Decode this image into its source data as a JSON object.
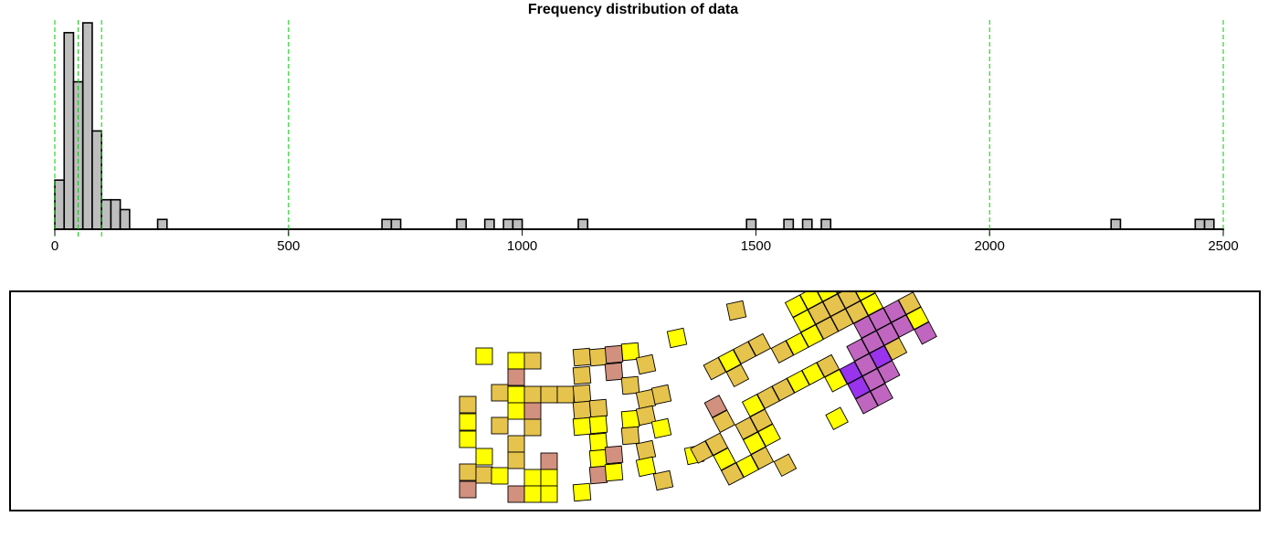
{
  "chart_data": {
    "type": "bar",
    "title": "Frequency distribution of data",
    "xlabel": "",
    "ylabel": "",
    "xlim": [
      0,
      2500
    ],
    "ylim": [
      0,
      21
    ],
    "x_ticks": [
      0,
      500,
      1000,
      1500,
      2000,
      2500
    ],
    "bin_width": 20,
    "bins": [
      {
        "start": 0,
        "count": 5
      },
      {
        "start": 20,
        "count": 20
      },
      {
        "start": 40,
        "count": 15
      },
      {
        "start": 60,
        "count": 21
      },
      {
        "start": 80,
        "count": 10
      },
      {
        "start": 100,
        "count": 3
      },
      {
        "start": 120,
        "count": 3
      },
      {
        "start": 140,
        "count": 2
      },
      {
        "start": 220,
        "count": 1
      },
      {
        "start": 700,
        "count": 1
      },
      {
        "start": 720,
        "count": 1
      },
      {
        "start": 860,
        "count": 1
      },
      {
        "start": 920,
        "count": 1
      },
      {
        "start": 960,
        "count": 1
      },
      {
        "start": 980,
        "count": 1
      },
      {
        "start": 1120,
        "count": 1
      },
      {
        "start": 1480,
        "count": 1
      },
      {
        "start": 1560,
        "count": 1
      },
      {
        "start": 1600,
        "count": 1
      },
      {
        "start": 1640,
        "count": 1
      },
      {
        "start": 2260,
        "count": 1
      },
      {
        "start": 2440,
        "count": 1
      },
      {
        "start": 2460,
        "count": 1
      }
    ],
    "breaks": [
      0,
      50,
      100,
      500,
      2000,
      2500
    ],
    "grid": "dashed vertical class breaks",
    "legend": "none",
    "colors": {
      "bar_fill": "#bebebe",
      "bar_stroke": "#000000",
      "break_line": "#00cc00"
    }
  },
  "map_data": {
    "class_colors": [
      "#ffff00",
      "#e6c34c",
      "#d2907e",
      "#c066c0",
      "#9933ee"
    ],
    "cells": [
      {
        "c": 4,
        "r": 0,
        "cls": 1
      },
      {
        "c": 7,
        "r": 0,
        "cls": 1
      },
      {
        "c": 8,
        "r": 0,
        "cls": 0
      },
      {
        "c": 9,
        "r": 0,
        "cls": 0
      },
      {
        "c": 10,
        "r": 0,
        "cls": 1
      },
      {
        "c": 11,
        "r": 0,
        "cls": 1
      },
      {
        "c": 12,
        "r": 0,
        "cls": 1
      },
      {
        "c": 13,
        "r": 0,
        "cls": 0
      },
      {
        "c": 6,
        "r": -1,
        "cls": 1
      },
      {
        "c": 9,
        "r": -1,
        "cls": 0
      },
      {
        "c": 10,
        "r": -1,
        "cls": 1
      },
      {
        "c": 11,
        "r": -1,
        "cls": 1
      },
      {
        "c": 12,
        "r": -1,
        "cls": 1
      },
      {
        "c": 13,
        "r": -1,
        "cls": 0
      },
      {
        "c": 10,
        "r": -2,
        "cls": 0
      },
      {
        "c": 11,
        "r": -2,
        "cls": 0
      },
      {
        "c": 12,
        "r": -2,
        "cls": 1
      },
      {
        "c": 9,
        "r": -2,
        "cls": 0
      },
      {
        "c": 12,
        "r": -3,
        "cls": 1
      },
      {
        "c": 5,
        "r": -1,
        "cls": 1
      },
      {
        "c": 4,
        "r": -1,
        "cls": 0
      },
      {
        "c": 3,
        "r": -1,
        "cls": 1
      },
      {
        "c": 12,
        "r": 1,
        "cls": 3
      },
      {
        "c": 13,
        "r": 1,
        "cls": 3
      },
      {
        "c": 14,
        "r": 1,
        "cls": 3
      },
      {
        "c": 15,
        "r": 1,
        "cls": 1
      },
      {
        "c": 13,
        "r": 2,
        "cls": 3
      },
      {
        "c": 14,
        "r": 2,
        "cls": 3
      },
      {
        "c": 15,
        "r": 2,
        "cls": 0
      },
      {
        "c": 11,
        "r": 2,
        "cls": 3
      },
      {
        "c": 12,
        "r": 2,
        "cls": 3
      },
      {
        "c": 10,
        "r": 3,
        "cls": 4
      },
      {
        "c": 11,
        "r": 3,
        "cls": 3
      },
      {
        "c": 12,
        "r": 3,
        "cls": 4
      },
      {
        "c": 13,
        "r": 3,
        "cls": 1
      },
      {
        "c": 15,
        "r": 3,
        "cls": 3
      },
      {
        "c": 10,
        "r": 4,
        "cls": 4
      },
      {
        "c": 11,
        "r": 4,
        "cls": 3
      },
      {
        "c": 12,
        "r": 4,
        "cls": 3
      },
      {
        "c": 10,
        "r": 5,
        "cls": 3
      },
      {
        "c": 11,
        "r": 5,
        "cls": 3
      },
      {
        "c": 9,
        "r": 3,
        "cls": 0
      },
      {
        "c": 9,
        "r": 2,
        "cls": 1
      },
      {
        "c": 8,
        "r": 2,
        "cls": 0
      },
      {
        "c": 7,
        "r": 2,
        "cls": 0
      },
      {
        "c": 6,
        "r": 2,
        "cls": 1
      },
      {
        "c": 5,
        "r": 2,
        "cls": 1
      },
      {
        "c": 4,
        "r": 2,
        "cls": 0
      },
      {
        "c": 4,
        "r": 3,
        "cls": 1
      },
      {
        "c": 3,
        "r": 3,
        "cls": 1
      },
      {
        "c": 3,
        "r": 4,
        "cls": 0
      },
      {
        "c": 4,
        "r": 4,
        "cls": 0
      },
      {
        "c": 3,
        "r": 5,
        "cls": 1
      },
      {
        "c": 4,
        "r": 6,
        "cls": 1
      },
      {
        "c": 8,
        "r": 5,
        "cls": 0
      },
      {
        "c": 2,
        "r": 1,
        "cls": 2
      },
      {
        "c": 2,
        "r": 2,
        "cls": 1
      },
      {
        "c": 1,
        "r": 3,
        "cls": 1
      },
      {
        "c": 0,
        "r": 3,
        "cls": 1
      },
      {
        "c": 1,
        "r": 4,
        "cls": 0
      },
      {
        "c": 1,
        "r": 5,
        "cls": 1
      },
      {
        "c": 2,
        "r": 5,
        "cls": 0
      }
    ],
    "plain": [
      {
        "x": 530,
        "y": 390,
        "cls": 0
      },
      {
        "x": 565,
        "y": 395,
        "cls": 0
      },
      {
        "x": 583,
        "y": 395,
        "cls": 1
      },
      {
        "x": 565,
        "y": 413,
        "cls": 2
      },
      {
        "x": 547,
        "y": 430,
        "cls": 1
      },
      {
        "x": 565,
        "y": 432,
        "cls": 0
      },
      {
        "x": 583,
        "y": 432,
        "cls": 1
      },
      {
        "x": 601,
        "y": 432,
        "cls": 1
      },
      {
        "x": 619,
        "y": 432,
        "cls": 1
      },
      {
        "x": 565,
        "y": 450,
        "cls": 0
      },
      {
        "x": 583,
        "y": 450,
        "cls": 2
      },
      {
        "x": 512,
        "y": 443,
        "cls": 1
      },
      {
        "x": 512,
        "y": 462,
        "cls": 0
      },
      {
        "x": 512,
        "y": 481,
        "cls": 0
      },
      {
        "x": 547,
        "y": 466,
        "cls": 1
      },
      {
        "x": 583,
        "y": 468,
        "cls": 1
      },
      {
        "x": 565,
        "y": 486,
        "cls": 1
      },
      {
        "x": 530,
        "y": 500,
        "cls": 0
      },
      {
        "x": 565,
        "y": 504,
        "cls": 1
      },
      {
        "x": 601,
        "y": 505,
        "cls": 2
      },
      {
        "x": 512,
        "y": 517,
        "cls": 1
      },
      {
        "x": 530,
        "y": 520,
        "cls": 1
      },
      {
        "x": 547,
        "y": 521,
        "cls": 0
      },
      {
        "x": 583,
        "y": 523,
        "cls": 0
      },
      {
        "x": 601,
        "y": 523,
        "cls": 0
      },
      {
        "x": 512,
        "y": 536,
        "cls": 2
      },
      {
        "x": 565,
        "y": 541,
        "cls": 2
      },
      {
        "x": 583,
        "y": 541,
        "cls": 0
      },
      {
        "x": 601,
        "y": 541,
        "cls": 0
      },
      {
        "x": 637,
        "y": 539,
        "cls": 0
      },
      {
        "x": 637,
        "y": 391,
        "cls": 1
      },
      {
        "x": 655,
        "y": 391,
        "cls": 1
      },
      {
        "x": 672,
        "y": 388,
        "cls": 2
      },
      {
        "x": 690,
        "y": 385,
        "cls": 0
      },
      {
        "x": 637,
        "y": 411,
        "cls": 1
      },
      {
        "x": 672,
        "y": 407,
        "cls": 2
      },
      {
        "x": 707,
        "y": 399,
        "cls": 1
      },
      {
        "x": 637,
        "y": 431,
        "cls": 1
      },
      {
        "x": 637,
        "y": 449,
        "cls": 1
      },
      {
        "x": 655,
        "y": 447,
        "cls": 1
      },
      {
        "x": 637,
        "y": 467,
        "cls": 0
      },
      {
        "x": 655,
        "y": 465,
        "cls": 0
      },
      {
        "x": 655,
        "y": 484,
        "cls": 0
      },
      {
        "x": 655,
        "y": 502,
        "cls": 0
      },
      {
        "x": 672,
        "y": 498,
        "cls": 2
      },
      {
        "x": 655,
        "y": 520,
        "cls": 2
      },
      {
        "x": 672,
        "y": 517,
        "cls": 0
      },
      {
        "x": 690,
        "y": 422,
        "cls": 1
      },
      {
        "x": 707,
        "y": 437,
        "cls": 1
      },
      {
        "x": 724,
        "y": 432,
        "cls": 1
      },
      {
        "x": 690,
        "y": 459,
        "cls": 0
      },
      {
        "x": 707,
        "y": 455,
        "cls": 1
      },
      {
        "x": 690,
        "y": 477,
        "cls": 1
      },
      {
        "x": 724,
        "y": 469,
        "cls": 0
      },
      {
        "x": 707,
        "y": 493,
        "cls": 1
      },
      {
        "x": 707,
        "y": 511,
        "cls": 0
      },
      {
        "x": 726,
        "y": 526,
        "cls": 1
      },
      {
        "x": 741,
        "y": 370,
        "cls": 0
      },
      {
        "x": 806,
        "y": 340,
        "cls": 1
      },
      {
        "x": 760,
        "y": 498,
        "cls": 0
      }
    ]
  }
}
